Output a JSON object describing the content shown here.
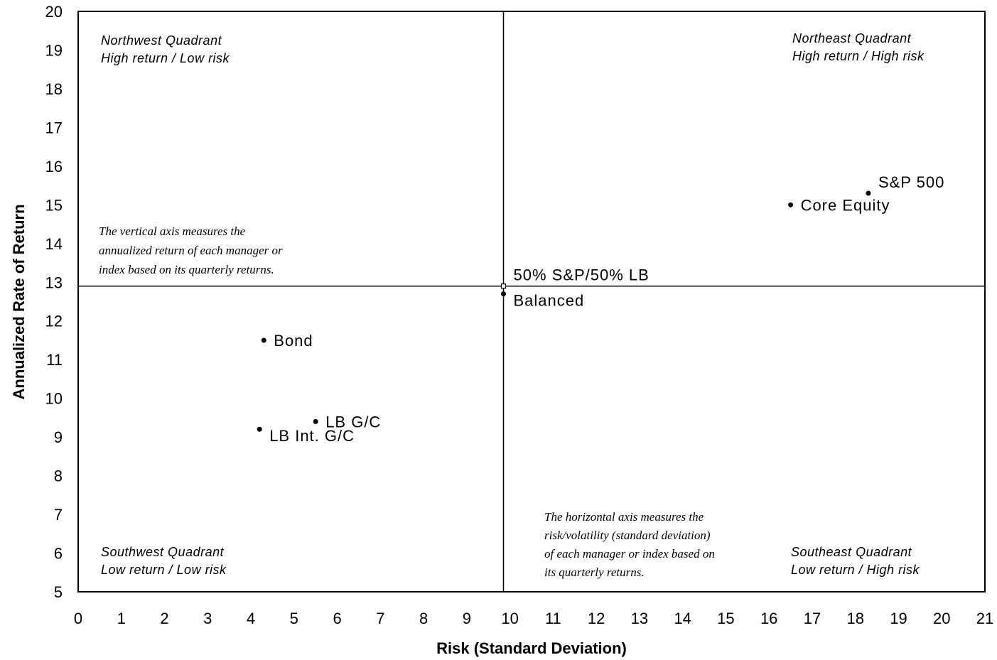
{
  "chart_data": {
    "type": "scatter",
    "xlabel": "Risk (Standard Deviation)",
    "ylabel": "Annualized Rate of Return",
    "xlim": [
      0,
      21
    ],
    "ylim": [
      5,
      20
    ],
    "x_ticks": [
      0,
      1,
      2,
      3,
      4,
      5,
      6,
      7,
      8,
      9,
      10,
      11,
      12,
      13,
      14,
      15,
      16,
      17,
      18,
      19,
      20,
      21
    ],
    "y_ticks": [
      5,
      6,
      7,
      8,
      9,
      10,
      11,
      12,
      13,
      14,
      15,
      16,
      17,
      18,
      19,
      20
    ],
    "grid": false,
    "reference_lines": {
      "x": 9.85,
      "y": 12.9
    },
    "points": [
      {
        "name": "S&P 500",
        "x": 18.3,
        "y": 15.3,
        "label_pos": "above-right"
      },
      {
        "name": "Core Equity",
        "x": 16.5,
        "y": 15.0,
        "label_pos": "right"
      },
      {
        "name": "50% S&P/50% LB",
        "x": 9.85,
        "y": 12.9,
        "label_pos": "above-right",
        "marker": "open-square"
      },
      {
        "name": "Balanced",
        "x": 9.85,
        "y": 12.7,
        "label_pos": "below-right"
      },
      {
        "name": "Bond",
        "x": 4.3,
        "y": 11.5,
        "label_pos": "right"
      },
      {
        "name": "LB G/C",
        "x": 5.5,
        "y": 9.4,
        "label_pos": "right"
      },
      {
        "name": "LB Int. G/C",
        "x": 4.2,
        "y": 9.2,
        "label_pos": "below-right"
      }
    ],
    "quadrant_labels": {
      "northwest": [
        "Northwest Quadrant",
        "High return / Low risk"
      ],
      "northeast": [
        "Northeast Quadrant",
        "High return / High risk"
      ],
      "southwest": [
        "Southwest Quadrant",
        "Low return / Low risk"
      ],
      "southeast": [
        "Southeast Quadrant",
        "Low return / High risk"
      ]
    },
    "annotations": {
      "vertical_axis_note": [
        "The vertical axis measures the",
        "annualized return of each  manager or",
        "index based on its quarterly returns."
      ],
      "horizontal_axis_note": [
        "The horizontal axis measures the",
        "risk/volatility (standard deviation)",
        "of each manager or index based on",
        "its quarterly returns."
      ]
    }
  }
}
